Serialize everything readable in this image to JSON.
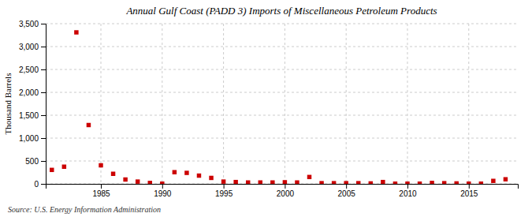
{
  "chart_data": {
    "type": "scatter",
    "title": "Annual Gulf Coast (PADD 3) Imports of Miscellaneous Petroleum Products",
    "ylabel": "Thousand Barrels",
    "source": "Source: U.S. Energy Information Administration",
    "x": [
      1981,
      1982,
      1983,
      1984,
      1985,
      1986,
      1987,
      1988,
      1989,
      1990,
      1991,
      1992,
      1993,
      1994,
      1995,
      1996,
      1997,
      1998,
      1999,
      2000,
      2001,
      2002,
      2003,
      2004,
      2005,
      2006,
      2007,
      2008,
      2009,
      2010,
      2011,
      2012,
      2013,
      2014,
      2015,
      2016,
      2017,
      2018
    ],
    "values": [
      305,
      375,
      3310,
      1285,
      405,
      220,
      95,
      50,
      20,
      5,
      255,
      240,
      180,
      130,
      50,
      40,
      30,
      30,
      30,
      35,
      30,
      150,
      15,
      15,
      15,
      15,
      10,
      40,
      5,
      5,
      5,
      20,
      15,
      10,
      5,
      5,
      65,
      100
    ],
    "color": "#cc0000",
    "marker": "square",
    "xlim": [
      1980.5,
      2019
    ],
    "xticks": [
      1985,
      1990,
      1995,
      2000,
      2005,
      2010,
      2015
    ],
    "ylim": [
      0,
      3500
    ],
    "yticks": [
      0,
      500,
      {
        "value": 1000,
        "label": "1,000"
      },
      {
        "value": 1500,
        "label": "1,500"
      },
      {
        "value": 2000,
        "label": "2,000"
      },
      {
        "value": 2500,
        "label": "2,500"
      },
      {
        "value": 3000,
        "label": "3,000"
      },
      {
        "value": 3500,
        "label": "3,500"
      }
    ],
    "grid": true
  }
}
